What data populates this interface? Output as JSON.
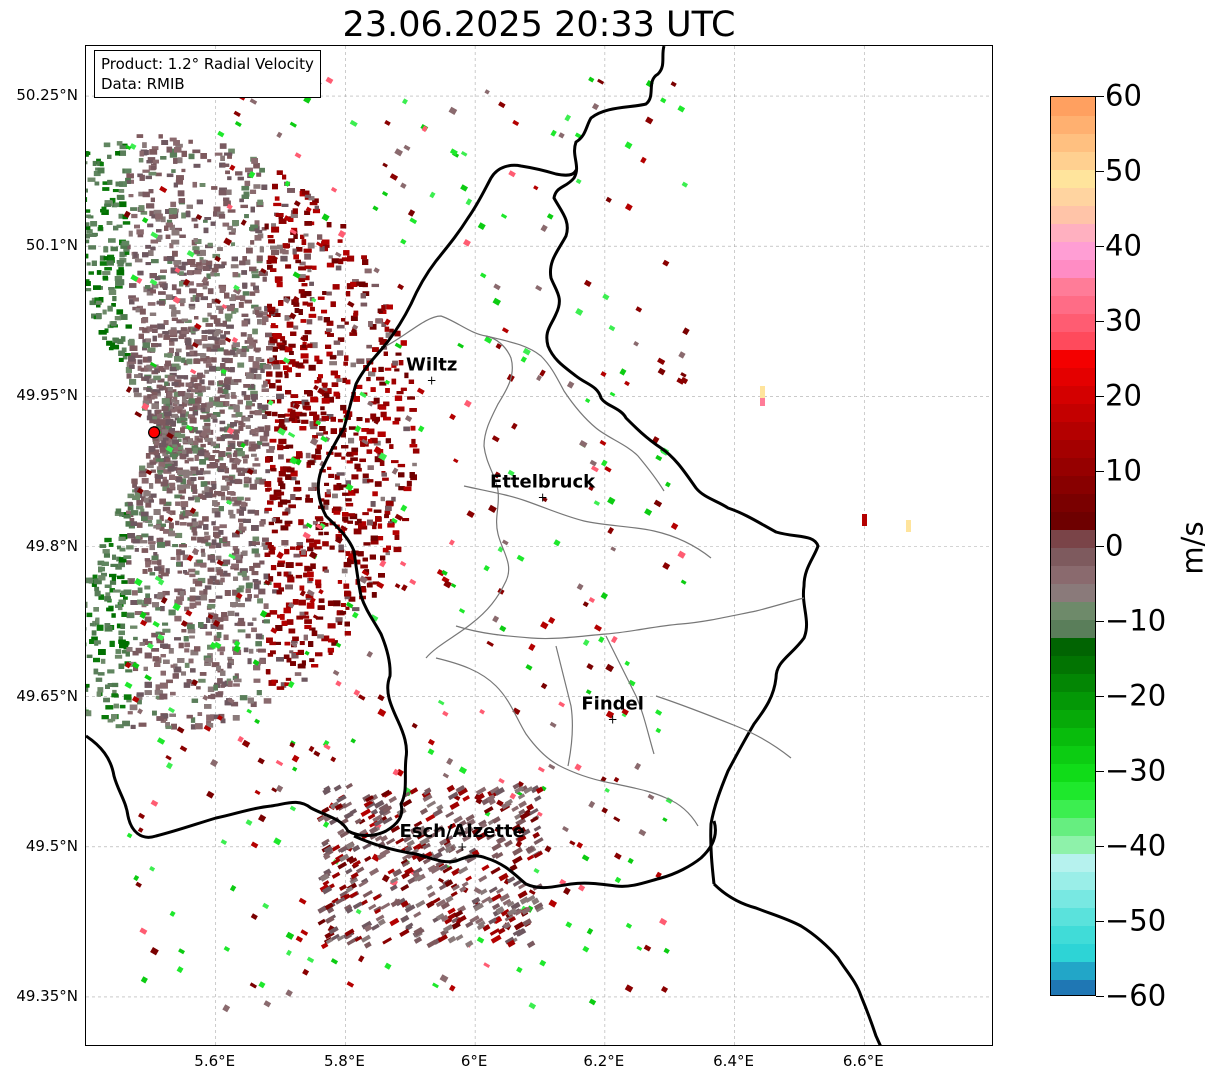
{
  "title": "23.06.2025 20:33 UTC",
  "info": {
    "product": "Product: 1.2° Radial Velocity",
    "data": "Data: RMIB"
  },
  "lat_labels": [
    {
      "value": 50.25,
      "label": "50.25°N"
    },
    {
      "value": 50.1,
      "label": "50.1°N"
    },
    {
      "value": 49.95,
      "label": "49.95°N"
    },
    {
      "value": 49.8,
      "label": "49.8°N"
    },
    {
      "value": 49.65,
      "label": "49.65°N"
    },
    {
      "value": 49.5,
      "label": "49.5°N"
    },
    {
      "value": 49.35,
      "label": "49.35°N"
    }
  ],
  "lon_labels": [
    {
      "value": 5.6,
      "label": "5.6°E"
    },
    {
      "value": 5.8,
      "label": "5.8°E"
    },
    {
      "value": 6.0,
      "label": "6°E"
    },
    {
      "value": 6.2,
      "label": "6.2°E"
    },
    {
      "value": 6.4,
      "label": "6.4°E"
    },
    {
      "value": 6.6,
      "label": "6.6°E"
    }
  ],
  "extent": {
    "lon_min": 5.4,
    "lon_max": 6.8,
    "lat_min": 49.3,
    "lat_max": 50.3
  },
  "cities": [
    {
      "name": "Wiltz",
      "lon": 5.933,
      "lat": 49.966
    },
    {
      "name": "Ettelbruck",
      "lon": 6.104,
      "lat": 49.849
    },
    {
      "name": "Findel",
      "lon": 6.212,
      "lat": 49.627
    },
    {
      "name": "Esch/Alzette",
      "lon": 5.98,
      "lat": 49.5
    }
  ],
  "radar_site": {
    "lon": 5.505,
    "lat": 49.914
  },
  "colorbar": {
    "unit": "m/s",
    "min": -60,
    "max": 60,
    "ticks": [
      "60",
      "50",
      "40",
      "30",
      "20",
      "10",
      "0",
      "−10",
      "−20",
      "−30",
      "−40",
      "−50",
      "−60"
    ],
    "colors": [
      "#1f77b4",
      "#22a6c8",
      "#2dd4d6",
      "#40dcd8",
      "#5ae2dc",
      "#78e8e2",
      "#9aeee8",
      "#b6f2ee",
      "#8ef2aa",
      "#66ee80",
      "#3cee50",
      "#1ee82c",
      "#10dc18",
      "#0ccc12",
      "#08bc0c",
      "#06aa08",
      "#049806",
      "#038604",
      "#027402",
      "#016402",
      "#5a7e5a",
      "#6e8a6a",
      "#8a7a7a",
      "#8a6a6e",
      "#7e5a5e",
      "#7a4448",
      "#6e0000",
      "#7a0000",
      "#880000",
      "#960000",
      "#a40000",
      "#b40000",
      "#c40000",
      "#d40000",
      "#e40000",
      "#f40000",
      "#ff4a5c",
      "#ff5c72",
      "#ff6c86",
      "#ff7c98",
      "#ff8cc4",
      "#ff9ed4",
      "#ffb0c0",
      "#ffc4a8",
      "#ffd4a0",
      "#ffe49c",
      "#ffd090",
      "#ffc080",
      "#ffb070",
      "#ffa060"
    ]
  }
}
